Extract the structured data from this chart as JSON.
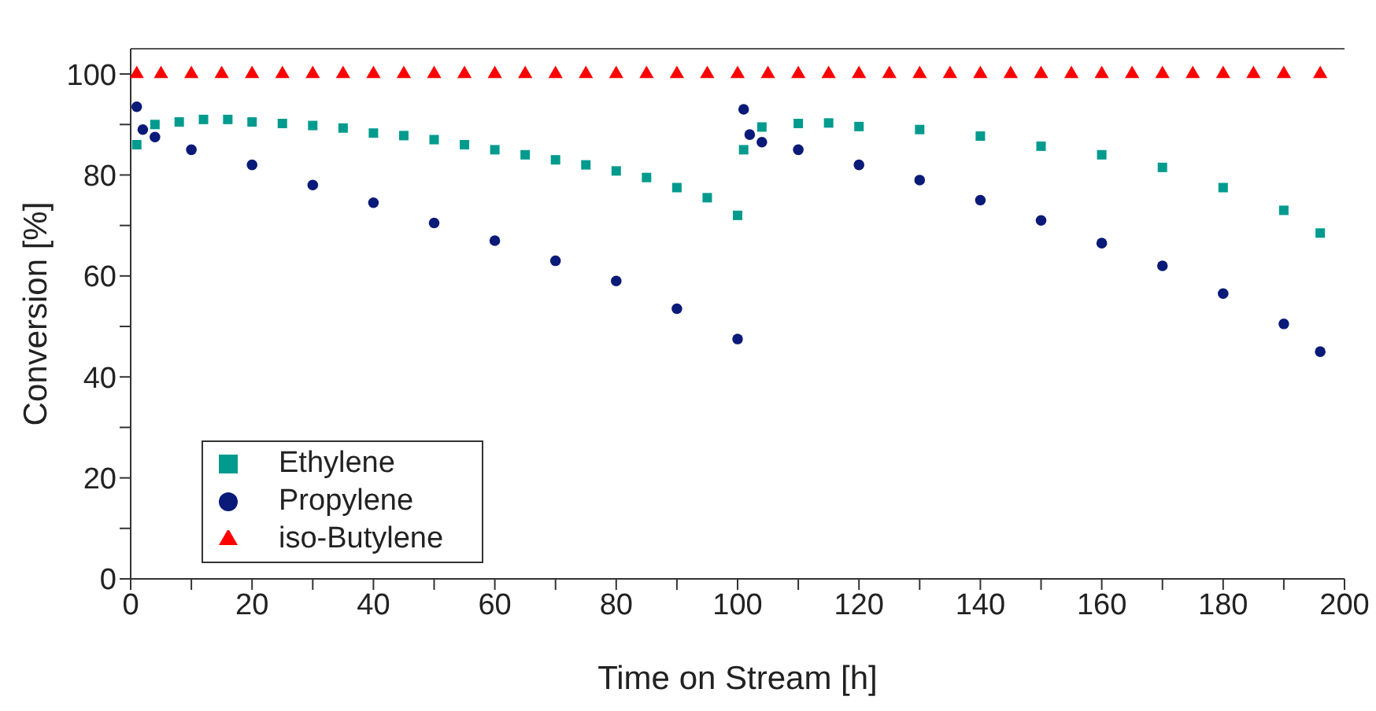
{
  "chart_data": {
    "type": "scatter",
    "xlabel": "Time on Stream [h]",
    "ylabel": "Conversion [%]",
    "xlim": [
      0,
      200
    ],
    "ylim": [
      0,
      105
    ],
    "xticks": [
      0,
      {
        "value": 10,
        "label": null
      },
      20,
      {
        "value": 30,
        "label": null
      },
      40,
      {
        "value": 50,
        "label": null
      },
      60,
      {
        "value": 70,
        "label": null
      },
      80,
      {
        "value": 90,
        "label": null
      },
      100,
      {
        "value": 110,
        "label": null
      },
      120,
      {
        "value": 130,
        "label": null
      },
      140,
      {
        "value": 150,
        "label": null
      },
      160,
      {
        "value": 170,
        "label": null
      },
      180,
      {
        "value": 190,
        "label": null
      },
      200
    ],
    "yticks": [
      0,
      {
        "value": 10,
        "label": null
      },
      20,
      {
        "value": 30,
        "label": null
      },
      40,
      {
        "value": 50,
        "label": null
      },
      60,
      {
        "value": 70,
        "label": null
      },
      80,
      {
        "value": 90,
        "label": null
      },
      100
    ],
    "grid": false,
    "legend": "bottom left",
    "series": [
      {
        "name": "Ethylene",
        "color": "#009b8e",
        "marker": "square",
        "x": [
          1,
          4,
          8,
          12,
          16,
          20,
          25,
          30,
          35,
          40,
          45,
          50,
          55,
          60,
          65,
          70,
          75,
          80,
          85,
          90,
          95,
          100,
          101,
          104,
          110,
          115,
          120,
          130,
          140,
          150,
          160,
          170,
          180,
          190,
          196
        ],
        "values": [
          86,
          90,
          90.5,
          91,
          91,
          90.5,
          90.2,
          89.8,
          89.3,
          88.3,
          87.8,
          87,
          86,
          85,
          84,
          83,
          82,
          80.8,
          79.5,
          77.5,
          75.5,
          72,
          85,
          89.5,
          90.2,
          90.3,
          89.6,
          89,
          87.7,
          85.7,
          84,
          81.5,
          77.5,
          73,
          68.5
        ]
      },
      {
        "name": "Propylene",
        "color": "#0a1a78",
        "marker": "circle",
        "x": [
          1,
          2,
          4,
          10,
          20,
          30,
          40,
          50,
          60,
          70,
          80,
          90,
          100,
          101,
          102,
          104,
          110,
          120,
          130,
          140,
          150,
          160,
          170,
          180,
          190,
          196
        ],
        "values": [
          93.5,
          89,
          87.5,
          85,
          82,
          78,
          74.5,
          70.5,
          67,
          63,
          59,
          53.5,
          47.5,
          93,
          88,
          86.5,
          85,
          82,
          79,
          75,
          71,
          66.5,
          62,
          56.5,
          50.5,
          45
        ]
      },
      {
        "name": "iso-Butylene",
        "color": "#ff0000",
        "marker": "triangle",
        "x": [
          1,
          5,
          10,
          15,
          20,
          25,
          30,
          35,
          40,
          45,
          50,
          55,
          60,
          65,
          70,
          75,
          80,
          85,
          90,
          95,
          100,
          105,
          110,
          115,
          120,
          125,
          130,
          135,
          140,
          145,
          150,
          155,
          160,
          165,
          170,
          175,
          180,
          185,
          190,
          196
        ],
        "values": [
          100,
          100,
          100,
          100,
          100,
          100,
          100,
          100,
          100,
          100,
          100,
          100,
          100,
          100,
          100,
          100,
          100,
          100,
          100,
          100,
          100,
          100,
          100,
          100,
          100,
          100,
          100,
          100,
          100,
          100,
          100,
          100,
          100,
          100,
          100,
          100,
          100,
          100,
          100,
          100
        ]
      }
    ]
  }
}
